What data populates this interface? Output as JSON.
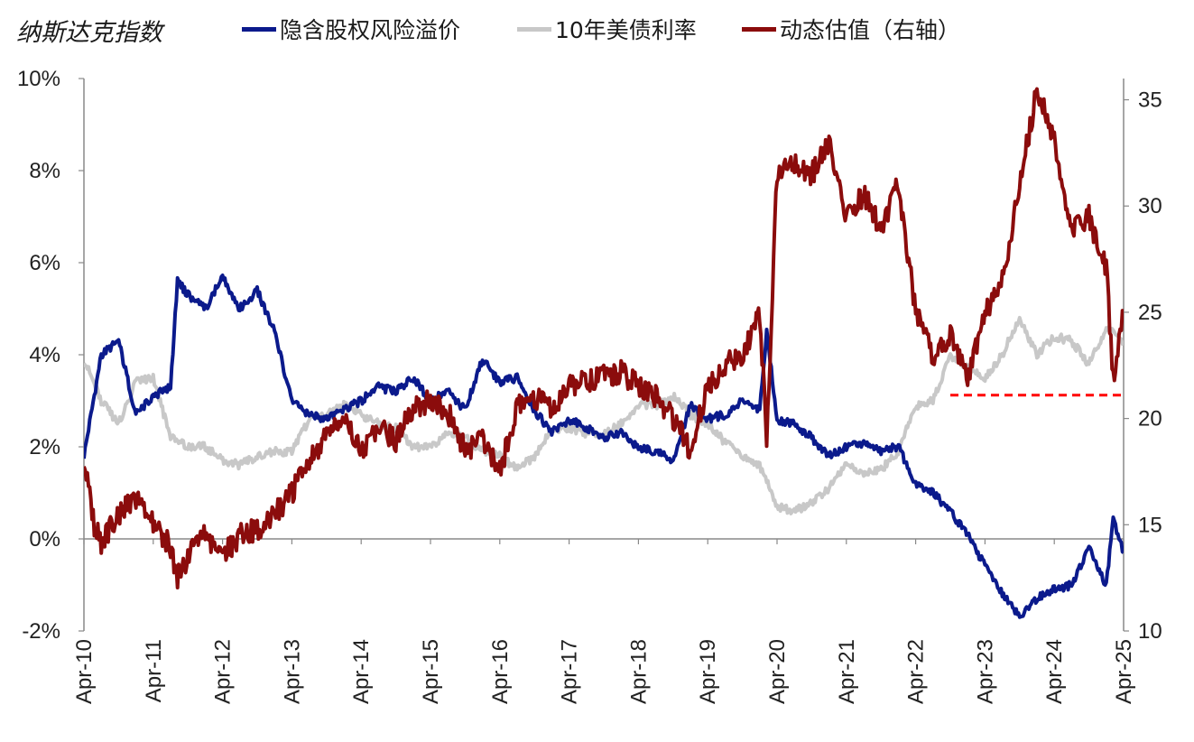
{
  "title": "纳斯达克指数",
  "legend": [
    {
      "name": "隐含股权风险溢价",
      "color": "#0b1a8c"
    },
    {
      "name": "10年美债利率",
      "color": "#c8c8c8"
    },
    {
      "name": "动态估值（右轴）",
      "color": "#8b0c0c"
    }
  ],
  "chart_data": {
    "type": "line",
    "title": "纳斯达克指数",
    "x_range": [
      "2010-04",
      "2025-04"
    ],
    "x_ticks": [
      "Apr-10",
      "Apr-11",
      "Apr-12",
      "Apr-13",
      "Apr-14",
      "Apr-15",
      "Apr-16",
      "Apr-17",
      "Apr-18",
      "Apr-19",
      "Apr-20",
      "Apr-21",
      "Apr-22",
      "Apr-23",
      "Apr-24",
      "Apr-25"
    ],
    "y_left": {
      "range": [
        -2,
        10
      ],
      "ticks": [
        "-2%",
        "0%",
        "2%",
        "4%",
        "6%",
        "8%",
        "10%"
      ],
      "negative_color": "#ff0000"
    },
    "y_right": {
      "range": [
        10,
        36
      ],
      "ticks": [
        "10",
        "15",
        "20",
        "25",
        "30",
        "35"
      ]
    },
    "series": [
      {
        "name": "隐含股权风险溢价",
        "axis": "left",
        "color": "#0b1a8c",
        "x": [
          2010.25,
          2010.5,
          2010.75,
          2011.0,
          2011.25,
          2011.5,
          2011.6,
          2011.75,
          2012.0,
          2012.25,
          2012.5,
          2012.75,
          2013.0,
          2013.25,
          2013.5,
          2013.75,
          2014.0,
          2014.25,
          2014.5,
          2014.75,
          2015.0,
          2015.25,
          2015.5,
          2015.75,
          2016.0,
          2016.25,
          2016.5,
          2016.75,
          2017.0,
          2017.25,
          2017.5,
          2017.75,
          2018.0,
          2018.25,
          2018.5,
          2018.75,
          2019.0,
          2019.25,
          2019.5,
          2019.75,
          2020.0,
          2020.1,
          2020.25,
          2020.5,
          2020.75,
          2021.0,
          2021.25,
          2021.5,
          2021.75,
          2022.0,
          2022.25,
          2022.5,
          2022.75,
          2023.0,
          2023.25,
          2023.5,
          2023.75,
          2024.0,
          2024.25,
          2024.5,
          2024.75,
          2025.0,
          2025.1,
          2025.25
        ],
        "y": [
          1.8,
          4.0,
          4.3,
          2.7,
          3.1,
          3.3,
          5.6,
          5.3,
          5.0,
          5.7,
          5.0,
          5.4,
          4.5,
          3.0,
          2.7,
          2.6,
          2.8,
          3.0,
          3.3,
          3.2,
          3.5,
          3.0,
          3.2,
          2.8,
          3.9,
          3.4,
          3.5,
          2.8,
          2.3,
          2.6,
          2.4,
          2.2,
          2.3,
          2.0,
          1.9,
          1.7,
          2.9,
          2.6,
          2.7,
          3.0,
          2.8,
          4.5,
          2.6,
          2.5,
          2.2,
          1.8,
          2.0,
          2.1,
          1.9,
          2.0,
          1.2,
          1.0,
          0.6,
          0.1,
          -0.6,
          -1.2,
          -1.7,
          -1.3,
          -1.1,
          -1.0,
          -0.2,
          -1.0,
          0.4,
          -0.3
        ]
      },
      {
        "name": "10年美债利率",
        "axis": "left",
        "color": "#c8c8c8",
        "x": [
          2010.25,
          2010.5,
          2010.75,
          2011.0,
          2011.25,
          2011.5,
          2011.75,
          2012.0,
          2012.25,
          2012.5,
          2012.75,
          2013.0,
          2013.25,
          2013.5,
          2013.75,
          2014.0,
          2014.25,
          2014.5,
          2014.75,
          2015.0,
          2015.25,
          2015.5,
          2015.75,
          2016.0,
          2016.25,
          2016.5,
          2016.75,
          2017.0,
          2017.25,
          2017.5,
          2017.75,
          2018.0,
          2018.25,
          2018.5,
          2018.75,
          2019.0,
          2019.25,
          2019.5,
          2019.75,
          2020.0,
          2020.25,
          2020.5,
          2020.75,
          2021.0,
          2021.25,
          2021.5,
          2021.75,
          2022.0,
          2022.25,
          2022.5,
          2022.75,
          2023.0,
          2023.25,
          2023.5,
          2023.75,
          2024.0,
          2024.25,
          2024.5,
          2024.75,
          2025.0,
          2025.25
        ],
        "y": [
          3.9,
          3.0,
          2.5,
          3.4,
          3.5,
          2.2,
          2.0,
          2.0,
          1.7,
          1.6,
          1.8,
          1.9,
          1.9,
          2.6,
          2.7,
          2.9,
          2.7,
          2.5,
          2.4,
          2.0,
          2.0,
          2.3,
          2.2,
          1.9,
          1.8,
          1.5,
          1.8,
          2.4,
          2.4,
          2.3,
          2.3,
          2.5,
          2.9,
          2.9,
          3.1,
          2.7,
          2.5,
          2.1,
          1.8,
          1.6,
          0.7,
          0.6,
          0.8,
          1.1,
          1.6,
          1.4,
          1.5,
          1.9,
          2.9,
          3.0,
          4.0,
          3.7,
          3.5,
          4.0,
          4.8,
          4.0,
          4.4,
          4.3,
          3.8,
          4.6,
          4.3
        ]
      },
      {
        "name": "动态估值（右轴）",
        "axis": "right",
        "color": "#8b0c0c",
        "x": [
          2010.25,
          2010.4,
          2010.5,
          2010.75,
          2011.0,
          2011.25,
          2011.5,
          2011.6,
          2011.75,
          2012.0,
          2012.25,
          2012.5,
          2012.75,
          2013.0,
          2013.25,
          2013.5,
          2013.75,
          2014.0,
          2014.25,
          2014.5,
          2014.75,
          2015.0,
          2015.25,
          2015.5,
          2015.75,
          2016.0,
          2016.25,
          2016.5,
          2016.75,
          2017.0,
          2017.25,
          2017.5,
          2017.75,
          2018.0,
          2018.25,
          2018.5,
          2018.75,
          2019.0,
          2019.25,
          2019.5,
          2019.75,
          2020.0,
          2020.1,
          2020.25,
          2020.5,
          2020.75,
          2021.0,
          2021.25,
          2021.5,
          2021.75,
          2022.0,
          2022.25,
          2022.5,
          2022.75,
          2023.0,
          2023.25,
          2023.5,
          2023.75,
          2024.0,
          2024.25,
          2024.5,
          2024.75,
          2025.0,
          2025.1,
          2025.25
        ],
        "y": [
          18.0,
          15.0,
          14.2,
          15.5,
          16.3,
          15.0,
          14.0,
          12.5,
          13.5,
          14.5,
          13.5,
          14.5,
          14.8,
          15.5,
          16.5,
          18.0,
          19.2,
          20.0,
          18.5,
          19.5,
          19.0,
          20.5,
          20.8,
          20.3,
          18.5,
          19.0,
          17.5,
          20.5,
          21.0,
          20.5,
          21.5,
          21.8,
          22.0,
          22.2,
          21.5,
          21.0,
          20.0,
          18.5,
          21.5,
          22.5,
          23.0,
          25.0,
          19.0,
          31.5,
          32.0,
          31.5,
          33.0,
          29.5,
          30.5,
          29.0,
          31.0,
          25.0,
          23.0,
          24.0,
          22.0,
          25.0,
          26.5,
          31.0,
          35.5,
          33.0,
          29.0,
          29.5,
          27.0,
          22.0,
          25.0
        ]
      }
    ],
    "reference_line": {
      "axis": "right",
      "value": 21.1,
      "from": 2022.75,
      "to": 2025.25,
      "color": "#ff0000",
      "style": "dashed"
    }
  }
}
